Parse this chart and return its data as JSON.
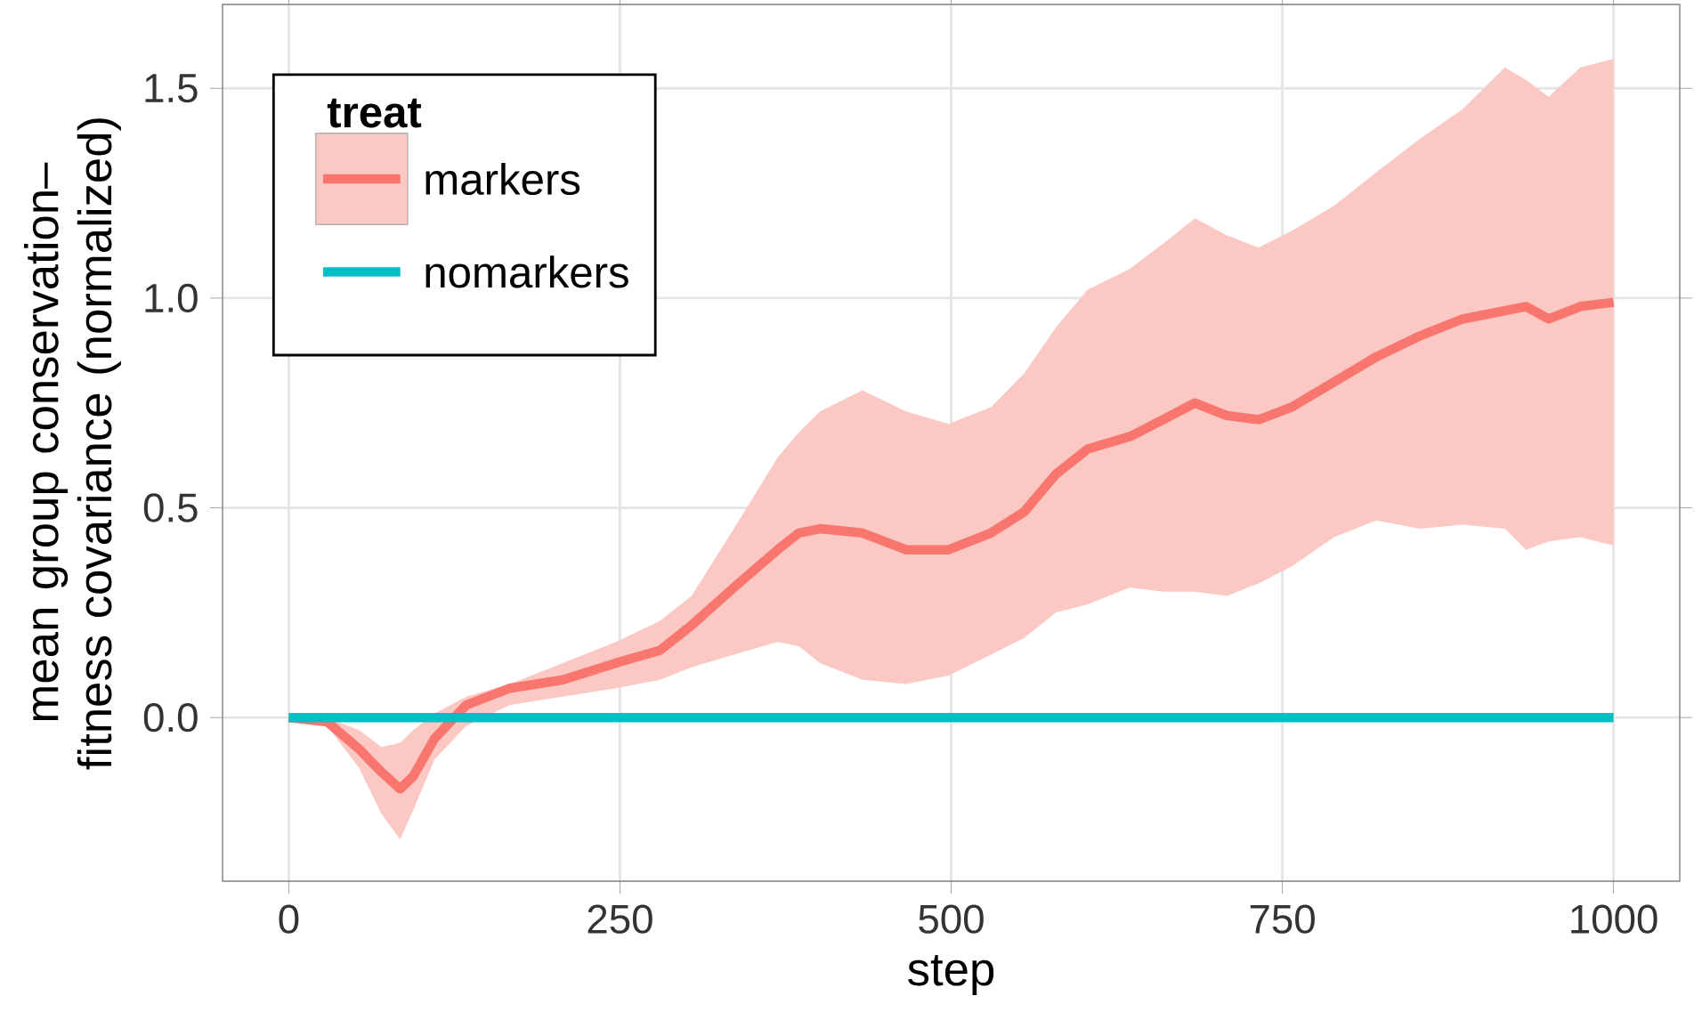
{
  "chart_data": {
    "type": "line",
    "xlabel": "step",
    "ylabel": "mean group conservation–fitness covariance (normalized)",
    "legend_title": "treat",
    "legend": "top left",
    "grid": true,
    "xlim": [
      -50,
      1050
    ],
    "ylim": [
      -0.39,
      1.7
    ],
    "xticks": [
      0,
      250,
      500,
      750,
      1000
    ],
    "yticks": [
      {
        "value": 0,
        "label": "0.0"
      },
      {
        "value": 0.5,
        "label": "0.5"
      },
      {
        "value": 1,
        "label": "1.0"
      },
      {
        "value": 1.5,
        "label": "1.5"
      }
    ],
    "series": [
      {
        "name": "markers",
        "color": "#f8766d",
        "x": [
          0,
          29,
          53,
          70,
          84,
          94,
          110,
          134,
          167,
          207,
          247,
          280,
          304,
          336,
          369,
          385,
          401,
          433,
          466,
          498,
          530,
          555,
          579,
          603,
          635,
          660,
          684,
          708,
          732,
          757,
          789,
          821,
          854,
          886,
          918,
          934,
          951,
          975,
          1000
        ],
        "values": [
          0,
          -0.01,
          -0.075,
          -0.13,
          -0.17,
          -0.14,
          -0.05,
          0.03,
          0.07,
          0.09,
          0.13,
          0.16,
          0.22,
          0.31,
          0.4,
          0.44,
          0.45,
          0.44,
          0.4,
          0.4,
          0.44,
          0.49,
          0.58,
          0.64,
          0.67,
          0.71,
          0.75,
          0.72,
          0.71,
          0.74,
          0.8,
          0.86,
          0.91,
          0.95,
          0.97,
          0.98,
          0.95,
          0.98,
          0.99
        ],
        "upper": [
          0,
          0.0,
          -0.03,
          -0.07,
          -0.06,
          -0.03,
          0.01,
          0.05,
          0.08,
          0.13,
          0.18,
          0.23,
          0.29,
          0.45,
          0.62,
          0.68,
          0.73,
          0.78,
          0.73,
          0.7,
          0.74,
          0.82,
          0.93,
          1.02,
          1.07,
          1.13,
          1.19,
          1.15,
          1.12,
          1.16,
          1.22,
          1.3,
          1.38,
          1.45,
          1.55,
          1.52,
          1.48,
          1.55,
          1.57
        ],
        "lower": [
          0,
          -0.02,
          -0.12,
          -0.23,
          -0.29,
          -0.22,
          -0.1,
          -0.02,
          0.03,
          0.05,
          0.07,
          0.09,
          0.12,
          0.15,
          0.18,
          0.17,
          0.13,
          0.09,
          0.08,
          0.1,
          0.15,
          0.19,
          0.25,
          0.27,
          0.31,
          0.3,
          0.3,
          0.29,
          0.32,
          0.36,
          0.43,
          0.47,
          0.45,
          0.46,
          0.45,
          0.4,
          0.42,
          0.43,
          0.41
        ]
      },
      {
        "name": "nomarkers",
        "color": "#00bfc4",
        "x": [
          0,
          1000
        ],
        "values": [
          0,
          0
        ]
      }
    ]
  }
}
